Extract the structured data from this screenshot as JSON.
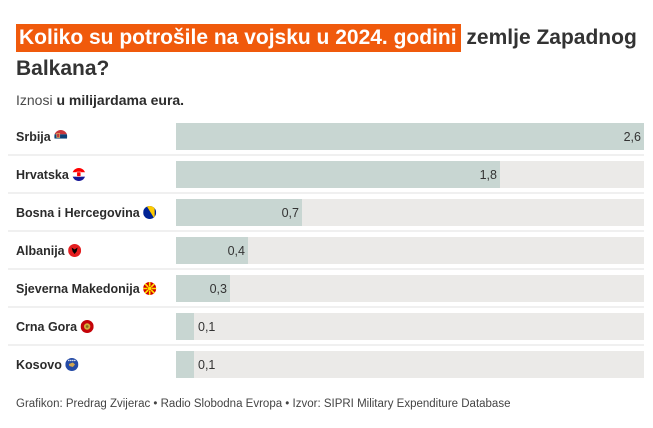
{
  "header": {
    "title_highlight": "Koliko su potrošile na vojsku u 2024. godini",
    "title_rest": " zemlje Zapadnog Balkana?",
    "subtitle_prefix": "Iznosi ",
    "subtitle_bold": "u milijardama eura."
  },
  "footer": {
    "credit": "Grafikon: Predrag Zvijerac • Radio Slobodna Evropa • Izvor: SIPRI Military Expenditure Database"
  },
  "colors": {
    "accent": "#f05a0c",
    "bar": "#c8d6d2",
    "track": "#ebeae8",
    "divider": "#e2e2e2"
  },
  "chart_data": {
    "type": "bar",
    "orientation": "horizontal",
    "categories": [
      "Srbija",
      "Hrvatska",
      "Bosna i Hercegovina",
      "Albanija",
      "Sjeverna Makedonija",
      "Crna Gora",
      "Kosovo"
    ],
    "flag_icons": [
      "serbia-flag-icon",
      "croatia-flag-icon",
      "bosnia-flag-icon",
      "albania-flag-icon",
      "north-macedonia-flag-icon",
      "montenegro-flag-icon",
      "kosovo-flag-icon"
    ],
    "values": [
      2.6,
      1.8,
      0.7,
      0.4,
      0.3,
      0.1,
      0.1
    ],
    "value_labels": [
      "2,6",
      "1,8",
      "0,7",
      "0,4",
      "0,3",
      "0,1",
      "0,1"
    ],
    "xlim": [
      0,
      2.6
    ],
    "grid": false,
    "legend": "none"
  }
}
